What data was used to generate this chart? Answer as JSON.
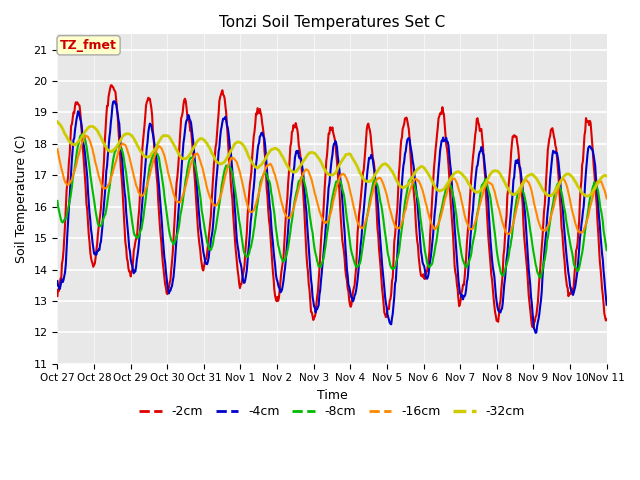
{
  "title": "Tonzi Soil Temperatures Set C",
  "xlabel": "Time",
  "ylabel": "Soil Temperature (C)",
  "ylim": [
    11.0,
    21.5
  ],
  "yticks": [
    11.0,
    12.0,
    13.0,
    14.0,
    15.0,
    16.0,
    17.0,
    18.0,
    19.0,
    20.0,
    21.0
  ],
  "annotation_text": "TZ_fmet",
  "annotation_bg": "#ffffcc",
  "annotation_border": "#aaaaaa",
  "annotation_text_color": "#cc0000",
  "bg_color": "#e8e8e8",
  "legend_entries": [
    "-2cm",
    "-4cm",
    "-8cm",
    "-16cm",
    "-32cm"
  ],
  "line_colors": [
    "#dd0000",
    "#0000cc",
    "#00bb00",
    "#ff8800",
    "#cccc00"
  ],
  "line_widths": [
    1.5,
    1.5,
    1.5,
    1.5,
    2.0
  ],
  "xtick_labels": [
    "Oct 27",
    "Oct 28",
    "Oct 29",
    "Oct 30",
    "Oct 31",
    "Nov 1",
    "Nov 2",
    "Nov 3",
    "Nov 4",
    "Nov 5",
    "Nov 6",
    "Nov 7",
    "Nov 8",
    "Nov 9",
    "Nov 10",
    "Nov 11"
  ],
  "n_days": 15,
  "pts_per_day": 48
}
